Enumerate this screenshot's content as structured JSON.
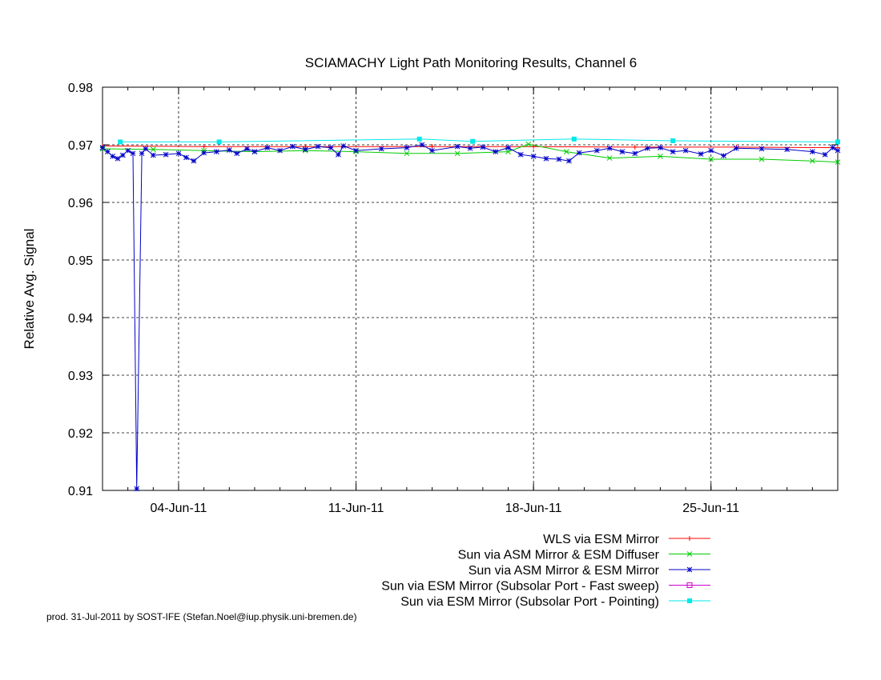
{
  "footer": "prod. 31-Jul-2011 by SOST-IFE (Stefan.Noel@iup.physik.uni-bremen.de)",
  "chart_data": {
    "type": "line",
    "title": "SCIAMACHY Light Path Monitoring Results, Channel 6",
    "xlabel": "",
    "ylabel": "Relative Avg. Signal",
    "xlim": [
      "2011-06-01",
      "2011-06-30"
    ],
    "ylim": [
      0.91,
      0.98
    ],
    "grid": true,
    "grid_style": "dashed",
    "legend_position": "bottom-right, below plot",
    "x_ticks": [
      {
        "date": "2011-06-04",
        "label": "04-Jun-11"
      },
      {
        "date": "2011-06-11",
        "label": "11-Jun-11"
      },
      {
        "date": "2011-06-18",
        "label": "18-Jun-11"
      },
      {
        "date": "2011-06-25",
        "label": "25-Jun-11"
      }
    ],
    "y_ticks": [
      0.91,
      0.92,
      0.93,
      0.94,
      0.95,
      0.96,
      0.97,
      0.98
    ],
    "series": [
      {
        "name": "WLS via ESM Mirror",
        "color": "#ff0000",
        "marker": "plus",
        "points": [
          [
            "2011-06-01",
            0.9698
          ],
          [
            "2011-06-05",
            0.9697
          ],
          [
            "2011-06-09",
            0.9697
          ],
          [
            "2011-06-14",
            0.9697
          ],
          [
            "2011-06-18",
            0.9697
          ],
          [
            "2011-06-22",
            0.9696
          ],
          [
            "2011-06-26",
            0.9696
          ],
          [
            "2011-06-30",
            0.9695
          ]
        ]
      },
      {
        "name": "Sun via ASM Mirror & ESM Diffuser",
        "color": "#00cc00",
        "marker": "x",
        "points": [
          [
            "2011-06-01",
            0.9693
          ],
          [
            "2011-06-03",
            0.9692
          ],
          [
            "2011-06-05",
            0.969
          ],
          [
            "2011-06-07",
            0.9688
          ],
          [
            "2011-06-09",
            0.969
          ],
          [
            "2011-06-11",
            0.9688
          ],
          [
            "2011-06-13",
            0.9685
          ],
          [
            "2011-06-15",
            0.9685
          ],
          [
            "2011-06-17",
            0.9688
          ],
          [
            "2011-06-17.8",
            0.9701
          ],
          [
            "2011-06-19.3",
            0.9688
          ],
          [
            "2011-06-21",
            0.9677
          ],
          [
            "2011-06-23",
            0.968
          ],
          [
            "2011-06-25",
            0.9675
          ],
          [
            "2011-06-27",
            0.9675
          ],
          [
            "2011-06-29",
            0.9672
          ],
          [
            "2011-06-30",
            0.967
          ]
        ]
      },
      {
        "name": "Sun via ASM Mirror & ESM Mirror",
        "color": "#0000c8",
        "marker": "star",
        "points": [
          [
            "2011-06-01",
            0.9695
          ],
          [
            "2011-06-01.2",
            0.9688
          ],
          [
            "2011-06-01.4",
            0.968
          ],
          [
            "2011-06-01.6",
            0.9676
          ],
          [
            "2011-06-01.8",
            0.9682
          ],
          [
            "2011-06-02",
            0.969
          ],
          [
            "2011-06-02.2",
            0.9685
          ],
          [
            "2011-06-02.35",
            0.9103
          ],
          [
            "2011-06-02.55",
            0.9685
          ],
          [
            "2011-06-02.7",
            0.9693
          ],
          [
            "2011-06-03",
            0.9682
          ],
          [
            "2011-06-03.5",
            0.9683
          ],
          [
            "2011-06-04",
            0.9685
          ],
          [
            "2011-06-04.3",
            0.9678
          ],
          [
            "2011-06-04.6",
            0.9672
          ],
          [
            "2011-06-05",
            0.9686
          ],
          [
            "2011-06-05.5",
            0.9688
          ],
          [
            "2011-06-06",
            0.9691
          ],
          [
            "2011-06-06.3",
            0.9685
          ],
          [
            "2011-06-06.7",
            0.9693
          ],
          [
            "2011-06-07",
            0.9688
          ],
          [
            "2011-06-07.5",
            0.9695
          ],
          [
            "2011-06-08",
            0.969
          ],
          [
            "2011-06-08.5",
            0.9697
          ],
          [
            "2011-06-09",
            0.9692
          ],
          [
            "2011-06-09.5",
            0.9697
          ],
          [
            "2011-06-10",
            0.9695
          ],
          [
            "2011-06-10.3",
            0.9683
          ],
          [
            "2011-06-10.5",
            0.9698
          ],
          [
            "2011-06-11",
            0.969
          ],
          [
            "2011-06-12",
            0.9693
          ],
          [
            "2011-06-13",
            0.9695
          ],
          [
            "2011-06-13.6",
            0.97
          ],
          [
            "2011-06-14",
            0.969
          ],
          [
            "2011-06-15",
            0.9697
          ],
          [
            "2011-06-15.5",
            0.9694
          ],
          [
            "2011-06-16",
            0.9696
          ],
          [
            "2011-06-16.5",
            0.9688
          ],
          [
            "2011-06-17",
            0.9695
          ],
          [
            "2011-06-17.5",
            0.9683
          ],
          [
            "2011-06-18",
            0.968
          ],
          [
            "2011-06-18.5",
            0.9676
          ],
          [
            "2011-06-19",
            0.9675
          ],
          [
            "2011-06-19.4",
            0.9672
          ],
          [
            "2011-06-19.8",
            0.9686
          ],
          [
            "2011-06-20.5",
            0.969
          ],
          [
            "2011-06-21",
            0.9694
          ],
          [
            "2011-06-21.5",
            0.9688
          ],
          [
            "2011-06-22",
            0.9685
          ],
          [
            "2011-06-22.5",
            0.9694
          ],
          [
            "2011-06-23",
            0.9695
          ],
          [
            "2011-06-23.5",
            0.9688
          ],
          [
            "2011-06-24",
            0.969
          ],
          [
            "2011-06-24.6",
            0.9684
          ],
          [
            "2011-06-25",
            0.969
          ],
          [
            "2011-06-25.5",
            0.9681
          ],
          [
            "2011-06-26",
            0.9694
          ],
          [
            "2011-06-27",
            0.9693
          ],
          [
            "2011-06-28",
            0.9692
          ],
          [
            "2011-06-29",
            0.9688
          ],
          [
            "2011-06-29.5",
            0.9683
          ],
          [
            "2011-06-29.8",
            0.9695
          ],
          [
            "2011-06-30",
            0.969
          ]
        ]
      },
      {
        "name": "Sun via ESM Mirror (Subsolar Port - Fast sweep)",
        "color": "#cc00cc",
        "marker": "square-open",
        "points": []
      },
      {
        "name": "Sun via ESM Mirror (Subsolar Port - Pointing)",
        "color": "#00e8e8",
        "marker": "square-filled",
        "points": [
          [
            "2011-06-01.7",
            0.9705
          ],
          [
            "2011-06-05.6",
            0.9705
          ],
          [
            "2011-06-13.5",
            0.971
          ],
          [
            "2011-06-15.6",
            0.9706
          ],
          [
            "2011-06-19.6",
            0.971
          ],
          [
            "2011-06-23.5",
            0.9707
          ],
          [
            "2011-06-30",
            0.9705
          ]
        ]
      }
    ]
  }
}
